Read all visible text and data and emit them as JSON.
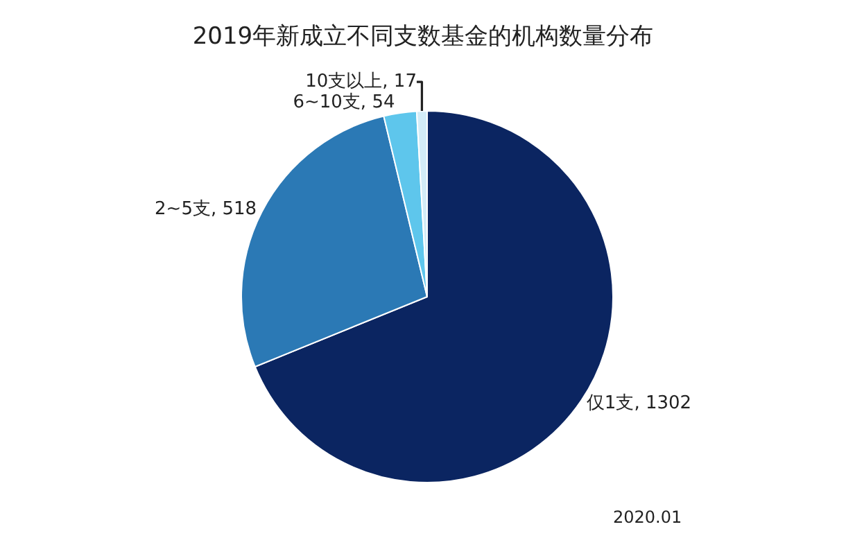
{
  "chart_data": {
    "type": "pie",
    "title": "2019年新成立不同支数基金的机构数量分布",
    "categories": [
      "仅1支, 1302",
      "2~5支, 518",
      "6~10支, 54",
      "10支以上, 17"
    ],
    "values": [
      1302,
      518,
      54,
      17
    ],
    "colors": [
      "#0b2561",
      "#2b79b5",
      "#5ec6ec",
      "#d3ecf7"
    ],
    "legend": false,
    "annotations": [
      "2020.01"
    ]
  }
}
